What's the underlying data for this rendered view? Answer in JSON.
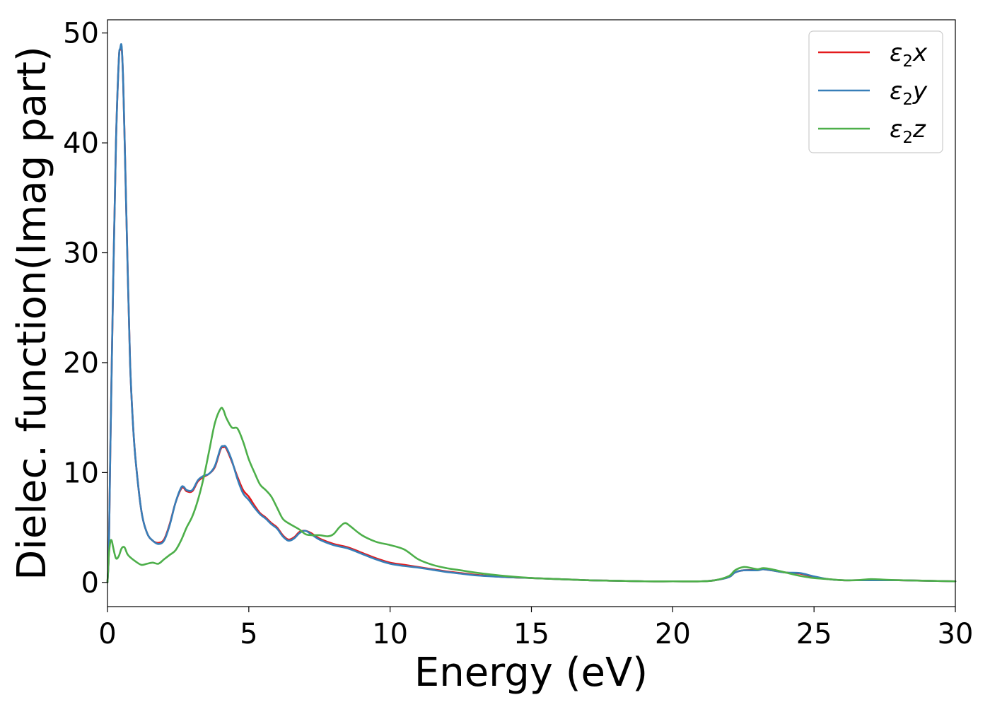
{
  "chart_data": {
    "type": "line",
    "title": "",
    "xlabel": "Energy (eV)",
    "ylabel": "Dielec. function(Imag part)",
    "xlim": [
      0,
      30
    ],
    "ylim": [
      -2.2,
      51.2
    ],
    "xticks": [
      0,
      5,
      10,
      15,
      20,
      25,
      30
    ],
    "yticks": [
      0,
      10,
      20,
      30,
      40,
      50
    ],
    "grid": false,
    "legend_position": "top-right",
    "series": [
      {
        "name": "ε2x",
        "legend_base": "ε",
        "legend_sub": "2",
        "legend_suffix": "x",
        "color": "#e41a1c",
        "x": [
          0,
          0.05,
          0.1,
          0.2,
          0.3,
          0.4,
          0.45,
          0.5,
          0.55,
          0.6,
          0.7,
          0.8,
          0.9,
          1.0,
          1.2,
          1.4,
          1.6,
          1.8,
          2.0,
          2.2,
          2.4,
          2.6,
          2.7,
          2.8,
          3.0,
          3.2,
          3.4,
          3.6,
          3.8,
          4.0,
          4.1,
          4.2,
          4.4,
          4.6,
          4.8,
          5.0,
          5.2,
          5.4,
          5.6,
          5.8,
          6.0,
          6.2,
          6.4,
          6.6,
          6.8,
          7.0,
          7.2,
          7.5,
          8.0,
          8.5,
          9.0,
          9.5,
          10.0,
          10.5,
          11.0,
          11.5,
          12.0,
          12.5,
          13.0,
          14.0,
          15.0,
          16.0,
          17.0,
          18.0,
          19.0,
          20.0,
          21.0,
          21.5,
          22.0,
          22.2,
          22.5,
          23.0,
          23.2,
          23.5,
          24.0,
          24.5,
          25.0,
          25.5,
          26.0,
          26.5,
          27.0,
          27.5,
          28.0,
          29.0,
          30.0
        ],
        "values": [
          0,
          3,
          12,
          27,
          40,
          47.5,
          48.5,
          48.7,
          46,
          41,
          30,
          20,
          14.5,
          11,
          6.5,
          4.5,
          3.8,
          3.6,
          3.9,
          5.3,
          7.2,
          8.5,
          8.6,
          8.3,
          8.3,
          9.2,
          9.6,
          9.9,
          10.5,
          12.1,
          12.3,
          12.2,
          11,
          9.6,
          8.4,
          7.8,
          7.0,
          6.3,
          5.9,
          5.4,
          5.0,
          4.3,
          3.9,
          4.1,
          4.6,
          4.7,
          4.5,
          4.0,
          3.5,
          3.2,
          2.7,
          2.2,
          1.8,
          1.6,
          1.4,
          1.2,
          1.0,
          0.85,
          0.7,
          0.5,
          0.4,
          0.3,
          0.2,
          0.15,
          0.1,
          0.1,
          0.1,
          0.2,
          0.5,
          0.9,
          1.1,
          1.15,
          1.2,
          1.1,
          0.9,
          0.8,
          0.5,
          0.3,
          0.2,
          0.2,
          0.2,
          0.2,
          0.2,
          0.15,
          0.1
        ]
      },
      {
        "name": "ε2y",
        "legend_base": "ε",
        "legend_sub": "2",
        "legend_suffix": "y",
        "color": "#377eb8",
        "x": [
          0,
          0.05,
          0.1,
          0.2,
          0.3,
          0.4,
          0.45,
          0.5,
          0.55,
          0.6,
          0.7,
          0.8,
          0.9,
          1.0,
          1.2,
          1.4,
          1.6,
          1.8,
          2.0,
          2.2,
          2.4,
          2.6,
          2.7,
          2.8,
          3.0,
          3.2,
          3.4,
          3.6,
          3.8,
          4.0,
          4.1,
          4.2,
          4.4,
          4.6,
          4.8,
          5.0,
          5.2,
          5.4,
          5.6,
          5.8,
          6.0,
          6.2,
          6.4,
          6.6,
          6.8,
          7.0,
          7.2,
          7.5,
          8.0,
          8.5,
          9.0,
          9.5,
          10.0,
          10.5,
          11.0,
          11.5,
          12.0,
          12.5,
          13.0,
          14.0,
          15.0,
          16.0,
          17.0,
          18.0,
          19.0,
          20.0,
          21.0,
          21.5,
          22.0,
          22.2,
          22.5,
          23.0,
          23.2,
          23.5,
          24.0,
          24.5,
          25.0,
          25.5,
          26.0,
          26.5,
          27.0,
          27.5,
          28.0,
          29.0,
          30.0
        ],
        "values": [
          0,
          3,
          12,
          27,
          40,
          47.5,
          48.6,
          48.8,
          46,
          41,
          30,
          20,
          14.5,
          11,
          6.5,
          4.5,
          3.8,
          3.5,
          3.8,
          5.2,
          7.2,
          8.6,
          8.7,
          8.4,
          8.4,
          9.3,
          9.7,
          9.9,
          10.6,
          12.2,
          12.4,
          12.3,
          11.1,
          9.4,
          8.1,
          7.5,
          6.8,
          6.2,
          5.8,
          5.3,
          4.9,
          4.2,
          3.8,
          4.0,
          4.5,
          4.7,
          4.4,
          3.9,
          3.4,
          3.1,
          2.6,
          2.1,
          1.7,
          1.5,
          1.35,
          1.15,
          0.95,
          0.8,
          0.65,
          0.5,
          0.4,
          0.3,
          0.2,
          0.15,
          0.1,
          0.1,
          0.1,
          0.2,
          0.5,
          0.9,
          1.1,
          1.1,
          1.2,
          1.1,
          0.9,
          0.85,
          0.55,
          0.3,
          0.2,
          0.2,
          0.2,
          0.2,
          0.2,
          0.15,
          0.1
        ]
      },
      {
        "name": "ε2z",
        "legend_base": "ε",
        "legend_sub": "2",
        "legend_suffix": "z",
        "color": "#4daf4a",
        "x": [
          0,
          0.05,
          0.1,
          0.15,
          0.2,
          0.3,
          0.4,
          0.5,
          0.6,
          0.7,
          0.8,
          1.0,
          1.2,
          1.4,
          1.6,
          1.8,
          2.0,
          2.2,
          2.4,
          2.6,
          2.8,
          3.0,
          3.2,
          3.4,
          3.6,
          3.8,
          4.0,
          4.1,
          4.2,
          4.4,
          4.6,
          4.8,
          5.0,
          5.2,
          5.4,
          5.6,
          5.8,
          6.0,
          6.2,
          6.4,
          6.6,
          6.8,
          7.0,
          7.2,
          7.5,
          7.8,
          8.0,
          8.2,
          8.4,
          8.6,
          9.0,
          9.5,
          10.0,
          10.5,
          11.0,
          11.5,
          12.0,
          12.5,
          13.0,
          14.0,
          15.0,
          16.0,
          17.0,
          18.0,
          19.0,
          20.0,
          21.0,
          21.5,
          22.0,
          22.2,
          22.5,
          22.8,
          23.0,
          23.2,
          23.5,
          24.0,
          24.5,
          25.0,
          25.5,
          26.0,
          26.5,
          27.0,
          27.5,
          28.0,
          29.0,
          30.0
        ],
        "values": [
          0,
          2.5,
          3.7,
          3.8,
          3.2,
          2.2,
          2.4,
          3.1,
          3.2,
          2.6,
          2.3,
          1.9,
          1.6,
          1.7,
          1.8,
          1.7,
          2.1,
          2.5,
          2.9,
          3.8,
          5.0,
          6.0,
          7.5,
          9.5,
          12,
          14.5,
          15.8,
          15.7,
          15.0,
          14.1,
          14.0,
          12.8,
          11.2,
          10.0,
          8.9,
          8.4,
          7.8,
          6.8,
          5.8,
          5.4,
          5.1,
          4.8,
          4.4,
          4.3,
          4.3,
          4.2,
          4.4,
          5.0,
          5.4,
          5.1,
          4.3,
          3.7,
          3.4,
          3.0,
          2.1,
          1.6,
          1.3,
          1.1,
          0.9,
          0.6,
          0.4,
          0.3,
          0.2,
          0.15,
          0.1,
          0.1,
          0.1,
          0.2,
          0.6,
          1.1,
          1.4,
          1.3,
          1.2,
          1.3,
          1.2,
          0.9,
          0.6,
          0.4,
          0.3,
          0.2,
          0.2,
          0.3,
          0.25,
          0.2,
          0.15,
          0.1
        ]
      }
    ]
  }
}
